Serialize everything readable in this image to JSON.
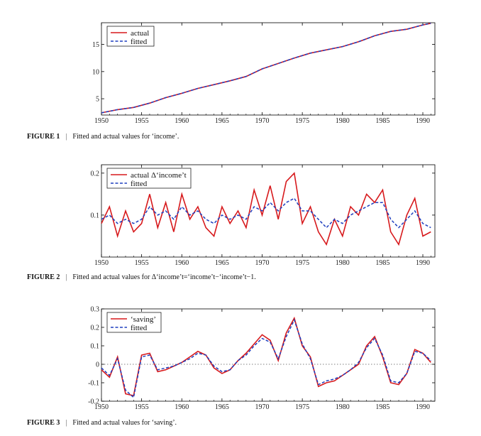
{
  "colors": {
    "actual": "#d7191c",
    "fitted": "#1f3fbf",
    "zero_line": "#555555"
  },
  "captions": [
    {
      "figure": "FIGURE 1",
      "sep": "|",
      "text": "Fitted and actual values for ‘income’."
    },
    {
      "figure": "FIGURE 2",
      "sep": "|",
      "text": "Fitted and actual values for Δ‘income’t=‘income’t−‘income’t−1."
    },
    {
      "figure": "FIGURE 3",
      "sep": "|",
      "text": "Fitted and actual values for ‘saving’."
    }
  ],
  "chart_data": [
    {
      "type": "line",
      "xlim": [
        1950,
        1991.5
      ],
      "ylim": [
        2,
        19
      ],
      "yticks": [
        5,
        10,
        15
      ],
      "xticks": [
        1950,
        1955,
        1960,
        1965,
        1970,
        1975,
        1980,
        1985,
        1990
      ],
      "legend_position": "top-left",
      "zero_line": false,
      "x": [
        1950,
        1952,
        1954,
        1956,
        1958,
        1960,
        1962,
        1964,
        1966,
        1968,
        1970,
        1972,
        1974,
        1976,
        1978,
        1980,
        1982,
        1984,
        1986,
        1988,
        1990,
        1991
      ],
      "series": [
        {
          "name": "actual",
          "values": [
            2.4,
            3.0,
            3.4,
            4.2,
            5.2,
            6.0,
            6.9,
            7.6,
            8.3,
            9.1,
            10.5,
            11.5,
            12.5,
            13.4,
            14.0,
            14.6,
            15.5,
            16.6,
            17.4,
            17.8,
            18.6,
            18.9
          ]
        },
        {
          "name": "fitted",
          "values": [
            2.4,
            3.0,
            3.4,
            4.2,
            5.2,
            6.0,
            6.9,
            7.6,
            8.3,
            9.1,
            10.5,
            11.5,
            12.5,
            13.4,
            14.0,
            14.6,
            15.5,
            16.6,
            17.4,
            17.8,
            18.6,
            18.9
          ]
        }
      ]
    },
    {
      "type": "line",
      "xlim": [
        1950,
        1991.5
      ],
      "ylim": [
        0,
        0.22
      ],
      "yticks": [
        0.1,
        0.2
      ],
      "xticks": [
        1950,
        1955,
        1960,
        1965,
        1970,
        1975,
        1980,
        1985,
        1990
      ],
      "legend_position": "top-left",
      "zero_line": false,
      "x": [
        1950,
        1951,
        1952,
        1953,
        1954,
        1955,
        1956,
        1957,
        1958,
        1959,
        1960,
        1961,
        1962,
        1963,
        1964,
        1965,
        1966,
        1967,
        1968,
        1969,
        1970,
        1971,
        1972,
        1973,
        1974,
        1975,
        1976,
        1977,
        1978,
        1979,
        1980,
        1981,
        1982,
        1983,
        1984,
        1985,
        1986,
        1987,
        1988,
        1989,
        1990,
        1991
      ],
      "series": [
        {
          "name": "actual Δ‘income’t",
          "values": [
            0.08,
            0.12,
            0.05,
            0.11,
            0.06,
            0.08,
            0.15,
            0.07,
            0.13,
            0.06,
            0.15,
            0.09,
            0.12,
            0.07,
            0.05,
            0.12,
            0.08,
            0.11,
            0.07,
            0.16,
            0.1,
            0.17,
            0.09,
            0.18,
            0.2,
            0.08,
            0.12,
            0.06,
            0.03,
            0.09,
            0.05,
            0.12,
            0.1,
            0.15,
            0.13,
            0.16,
            0.06,
            0.03,
            0.1,
            0.14,
            0.05,
            0.06
          ]
        },
        {
          "name": "fitted",
          "values": [
            0.09,
            0.1,
            0.08,
            0.09,
            0.08,
            0.09,
            0.12,
            0.1,
            0.11,
            0.09,
            0.12,
            0.1,
            0.11,
            0.09,
            0.08,
            0.1,
            0.09,
            0.1,
            0.09,
            0.12,
            0.11,
            0.13,
            0.11,
            0.13,
            0.14,
            0.11,
            0.11,
            0.09,
            0.07,
            0.09,
            0.08,
            0.1,
            0.11,
            0.12,
            0.13,
            0.13,
            0.09,
            0.07,
            0.09,
            0.11,
            0.08,
            0.07
          ]
        }
      ]
    },
    {
      "type": "line",
      "xlim": [
        1950,
        1991.5
      ],
      "ylim": [
        -0.2,
        0.3
      ],
      "yticks": [
        -0.2,
        -0.1,
        0.0,
        0.1,
        0.2,
        0.3
      ],
      "xticks": [
        1950,
        1955,
        1960,
        1965,
        1970,
        1975,
        1980,
        1985,
        1990
      ],
      "legend_position": "top-left",
      "zero_line": true,
      "x": [
        1950,
        1951,
        1952,
        1953,
        1954,
        1955,
        1956,
        1957,
        1958,
        1959,
        1960,
        1961,
        1962,
        1963,
        1964,
        1965,
        1966,
        1967,
        1968,
        1969,
        1970,
        1971,
        1972,
        1973,
        1974,
        1975,
        1976,
        1977,
        1978,
        1979,
        1980,
        1981,
        1982,
        1983,
        1984,
        1985,
        1986,
        1987,
        1988,
        1989,
        1990,
        1991
      ],
      "series": [
        {
          "name": "‘saving’",
          "values": [
            -0.03,
            -0.07,
            0.04,
            -0.16,
            -0.17,
            0.05,
            0.06,
            -0.04,
            -0.03,
            -0.01,
            0.01,
            0.04,
            0.07,
            0.05,
            -0.02,
            -0.05,
            -0.03,
            0.02,
            0.06,
            0.11,
            0.16,
            0.13,
            0.02,
            0.17,
            0.25,
            0.1,
            0.04,
            -0.12,
            -0.1,
            -0.09,
            -0.06,
            -0.03,
            0.0,
            0.1,
            0.15,
            0.04,
            -0.1,
            -0.11,
            -0.05,
            0.08,
            0.06,
            0.01
          ]
        },
        {
          "name": "fitted",
          "values": [
            -0.02,
            -0.06,
            0.03,
            -0.14,
            -0.18,
            0.04,
            0.05,
            -0.03,
            -0.02,
            -0.01,
            0.01,
            0.03,
            0.06,
            0.05,
            -0.01,
            -0.04,
            -0.03,
            0.02,
            0.05,
            0.1,
            0.14,
            0.12,
            0.03,
            0.15,
            0.24,
            0.11,
            0.03,
            -0.11,
            -0.09,
            -0.08,
            -0.06,
            -0.03,
            0.01,
            0.09,
            0.14,
            0.05,
            -0.09,
            -0.1,
            -0.05,
            0.07,
            0.06,
            0.02
          ]
        }
      ]
    }
  ]
}
